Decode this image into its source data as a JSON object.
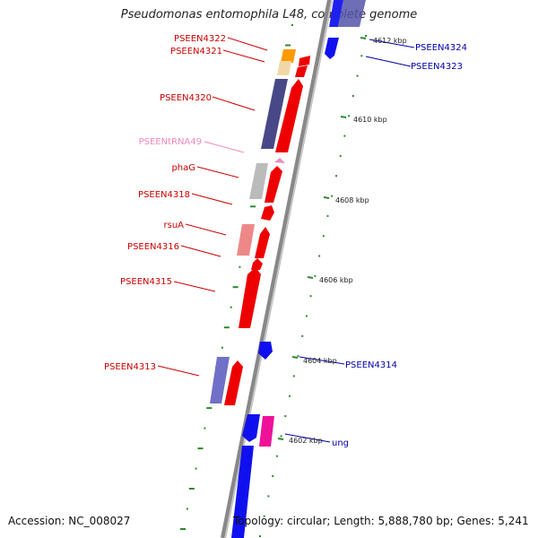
{
  "title": "Pseudomonas entomophila L48, complete genome",
  "footer": {
    "accession": "Accession: NC_008027",
    "topology": "Topology: circular; Length: 5,888,780 bp; Genes: 5,241"
  },
  "colors": {
    "cds_forward": "#ee0000",
    "cds_reverse": "#1010ee",
    "trna": "#ee88bb",
    "backbone": "#888888",
    "tick": "#2b8a2b",
    "label_forward": "#cc0000",
    "label_reverse": "#0000aa",
    "label_trna": "#ee88bb"
  },
  "ruler": [
    {
      "label": "4602 kbp"
    },
    {
      "label": "4604 kbp"
    },
    {
      "label": "4606 kbp"
    },
    {
      "label": "4608 kbp"
    },
    {
      "label": "4610 kbp"
    },
    {
      "label": "4612 kbp"
    }
  ],
  "genes_left": [
    {
      "label": "PSEEN4322",
      "kind": "cds"
    },
    {
      "label": "PSEEN4321",
      "kind": "cds"
    },
    {
      "label": "PSEEN4320",
      "kind": "cds"
    },
    {
      "label": "PSEENtRNA49",
      "kind": "trna"
    },
    {
      "label": "phaG",
      "kind": "cds"
    },
    {
      "label": "PSEEN4318",
      "kind": "cds"
    },
    {
      "label": "rsuA",
      "kind": "cds"
    },
    {
      "label": "PSEEN4316",
      "kind": "cds"
    },
    {
      "label": "PSEEN4315",
      "kind": "cds"
    },
    {
      "label": "PSEEN4313",
      "kind": "cds"
    }
  ],
  "genes_right": [
    {
      "label": "PSEEN4324",
      "kind": "cds"
    },
    {
      "label": "PSEEN4323",
      "kind": "cds"
    },
    {
      "label": "PSEEN4314",
      "kind": "cds"
    },
    {
      "label": "ung",
      "kind": "cds"
    }
  ]
}
